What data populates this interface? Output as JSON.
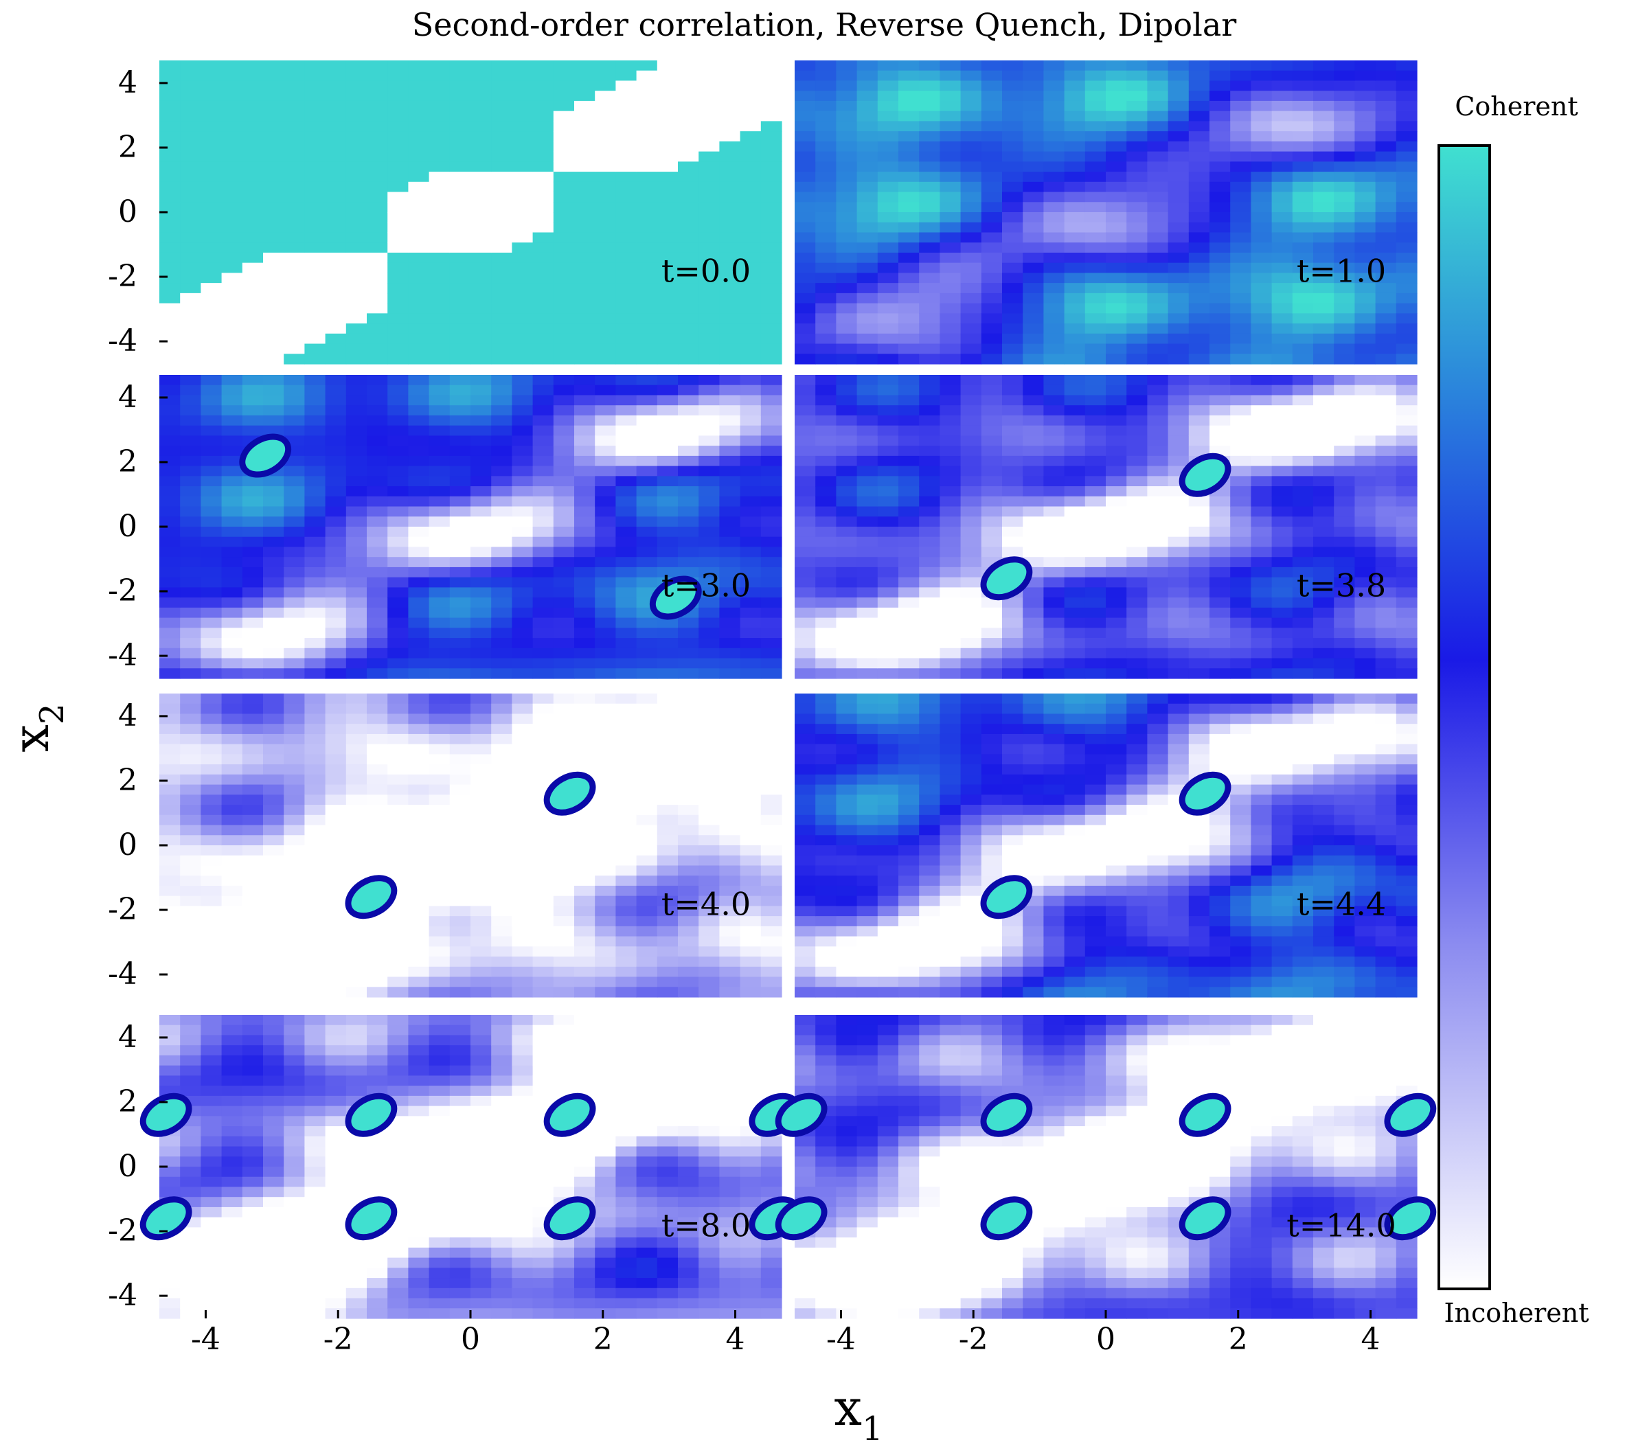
{
  "chart_data": {
    "type": "heatmap",
    "title": "Second-order correlation, Reverse Quench, Dipolar",
    "xlabel": "x",
    "xlabel_sub": "1",
    "ylabel": "x",
    "ylabel_sub": "2",
    "xlim": [
      -4.7,
      4.7
    ],
    "ylim": [
      -4.7,
      4.7
    ],
    "x_ticks": [
      -4,
      -2,
      0,
      2,
      4
    ],
    "y_ticks": [
      4,
      2,
      0,
      -2,
      -4
    ],
    "x_tick_labels": [
      "-4",
      "-2",
      "0",
      "2",
      "4"
    ],
    "y_tick_labels": [
      "4",
      "2",
      "0",
      "-2",
      "-4"
    ],
    "colorbar": {
      "top_label": "Coherent",
      "bottom_label": "Incoherent",
      "colors": [
        "#ffffff",
        "#8c8cf0",
        "#1a1ae6",
        "#2a82dc",
        "#40e0d0"
      ]
    },
    "panels": [
      {
        "time_label": "t=0.0",
        "time": 0.0,
        "base_level": 0.97,
        "spots": []
      },
      {
        "time_label": "t=1.0",
        "time": 1.0,
        "base_level": 0.78,
        "spots": []
      },
      {
        "time_label": "t=3.0",
        "time": 3.0,
        "base_level": 0.62,
        "spots": [
          [
            -3.1,
            2.2
          ],
          [
            3.1,
            -2.2
          ]
        ]
      },
      {
        "time_label": "t=3.8",
        "time": 3.8,
        "base_level": 0.45,
        "spots": [
          [
            1.5,
            1.6
          ],
          [
            -1.5,
            -1.6
          ]
        ]
      },
      {
        "time_label": "t=4.0",
        "time": 4.0,
        "base_level": 0.18,
        "spots": [
          [
            1.5,
            1.6
          ],
          [
            -1.5,
            -1.6
          ]
        ]
      },
      {
        "time_label": "t=4.4",
        "time": 4.4,
        "base_level": 0.62,
        "spots": [
          [
            1.5,
            1.6
          ],
          [
            -1.5,
            -1.6
          ]
        ]
      },
      {
        "time_label": "t=8.0",
        "time": 8.0,
        "base_level": 0.32,
        "spots": [
          [
            1.5,
            1.6
          ],
          [
            -1.5,
            -1.6
          ],
          [
            -1.5,
            1.6
          ],
          [
            1.5,
            -1.6
          ],
          [
            -4.6,
            1.6
          ],
          [
            4.6,
            -1.6
          ],
          [
            -4.6,
            -1.6
          ],
          [
            4.6,
            1.6
          ]
        ]
      },
      {
        "time_label": "t=14.0",
        "time": 14.0,
        "base_level": 0.34,
        "spots": [
          [
            1.5,
            1.6
          ],
          [
            -1.5,
            -1.6
          ],
          [
            -1.5,
            1.6
          ],
          [
            1.5,
            -1.6
          ],
          [
            -4.6,
            1.6
          ],
          [
            4.6,
            -1.6
          ],
          [
            -4.6,
            -1.6
          ],
          [
            4.6,
            1.6
          ]
        ]
      }
    ]
  }
}
